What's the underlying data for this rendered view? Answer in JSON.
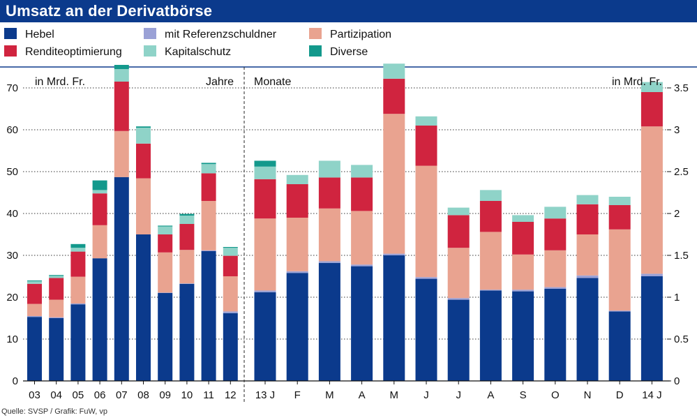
{
  "title": "Umsatz an der Derivatbörse",
  "legend": [
    {
      "label": "Hebel",
      "color": "#0b3a8c"
    },
    {
      "label": "Renditeoptimierung",
      "color": "#d0243f"
    },
    {
      "label": "mit Referenzschuldner",
      "color": "#9aa1d6"
    },
    {
      "label": "Kapitalschutz",
      "color": "#8fd3c8"
    },
    {
      "label": "Partizipation",
      "color": "#e9a390"
    },
    {
      "label": "Diverse",
      "color": "#13998c"
    }
  ],
  "source": "Quelle: SVSP / Grafik: FuW, vp",
  "chart_data": {
    "type": "bar",
    "stacked": true,
    "title": "Umsatz an der Derivatbörse",
    "grid": true,
    "stack_order": [
      "Hebel",
      "mit Referenzschuldner",
      "Partizipation",
      "Renditeoptimierung",
      "Kapitalschutz",
      "Diverse"
    ],
    "panels": [
      {
        "name": "Jahre",
        "unit_label": "in Mrd. Fr.",
        "period_label": "Jahre",
        "ylim": [
          0,
          75
        ],
        "yticks": [
          "0",
          "10",
          "20",
          "30",
          "40",
          "50",
          "60",
          "70"
        ],
        "ytick_values": [
          0,
          10,
          20,
          30,
          40,
          50,
          60,
          70
        ],
        "categories": [
          "03",
          "04",
          "05",
          "06",
          "07",
          "08",
          "09",
          "10",
          "11",
          "12"
        ],
        "series": [
          {
            "name": "Hebel",
            "values": [
              15.3,
              15.0,
              18.3,
              29.3,
              48.7,
              35.0,
              21.0,
              23.2,
              31.0,
              16.2
            ]
          },
          {
            "name": "mit Referenzschuldner",
            "values": [
              0.2,
              0.2,
              0.2,
              0,
              0,
              0,
              0.1,
              0.1,
              0.2,
              0.4
            ]
          },
          {
            "name": "Partizipation",
            "values": [
              2.9,
              4.2,
              6.4,
              7.9,
              11.0,
              13.4,
              9.6,
              8.0,
              11.8,
              8.4
            ]
          },
          {
            "name": "Renditeoptimierung",
            "values": [
              4.8,
              5.2,
              6.0,
              7.6,
              11.8,
              8.3,
              4.3,
              6.2,
              6.6,
              4.9
            ]
          },
          {
            "name": "Kapitalschutz",
            "values": [
              0.6,
              0.5,
              0.9,
              0.8,
              3.0,
              3.8,
              1.9,
              2.0,
              2.2,
              1.9
            ]
          },
          {
            "name": "Diverse",
            "values": [
              0.2,
              0.2,
              0.9,
              2.3,
              1.0,
              0.3,
              0.2,
              0.4,
              0.3,
              0.2
            ]
          }
        ]
      },
      {
        "name": "Monate",
        "unit_label": "in Mrd. Fr.",
        "period_label": "Monate",
        "ylim": [
          0,
          3.75
        ],
        "yticks": [
          "0",
          "0.5",
          "1",
          "1.5",
          "2",
          "2.5",
          "3",
          "3.5"
        ],
        "ytick_values": [
          0,
          0.5,
          1,
          1.5,
          2,
          2.5,
          3,
          3.5
        ],
        "categories": [
          "13 J",
          "F",
          "M",
          "A",
          "M",
          "J",
          "J",
          "A",
          "S",
          "O",
          "N",
          "D",
          "14 J"
        ],
        "series": [
          {
            "name": "Hebel",
            "values": [
              1.06,
              1.29,
              1.41,
              1.37,
              1.5,
              1.22,
              0.97,
              1.08,
              1.07,
              1.1,
              1.23,
              0.83,
              1.25
            ]
          },
          {
            "name": "mit Referenzschuldner",
            "values": [
              0.02,
              0.02,
              0.02,
              0.02,
              0.02,
              0.02,
              0.02,
              0.01,
              0.02,
              0.02,
              0.03,
              0.01,
              0.03
            ]
          },
          {
            "name": "Partizipation",
            "values": [
              0.86,
              0.64,
              0.63,
              0.64,
              1.67,
              1.33,
              0.6,
              0.69,
              0.42,
              0.44,
              0.49,
              0.97,
              1.76
            ]
          },
          {
            "name": "Renditeoptimierung",
            "values": [
              0.47,
              0.4,
              0.37,
              0.4,
              0.42,
              0.48,
              0.39,
              0.37,
              0.39,
              0.38,
              0.36,
              0.29,
              0.41
            ]
          },
          {
            "name": "Kapitalschutz",
            "values": [
              0.15,
              0.11,
              0.2,
              0.15,
              0.18,
              0.11,
              0.09,
              0.13,
              0.08,
              0.14,
              0.11,
              0.1,
              0.12
            ]
          },
          {
            "name": "Diverse",
            "values": [
              0.07,
              0,
              0,
              0,
              0,
              0,
              0,
              0,
              0,
              0,
              0,
              0,
              0
            ]
          }
        ]
      }
    ]
  }
}
